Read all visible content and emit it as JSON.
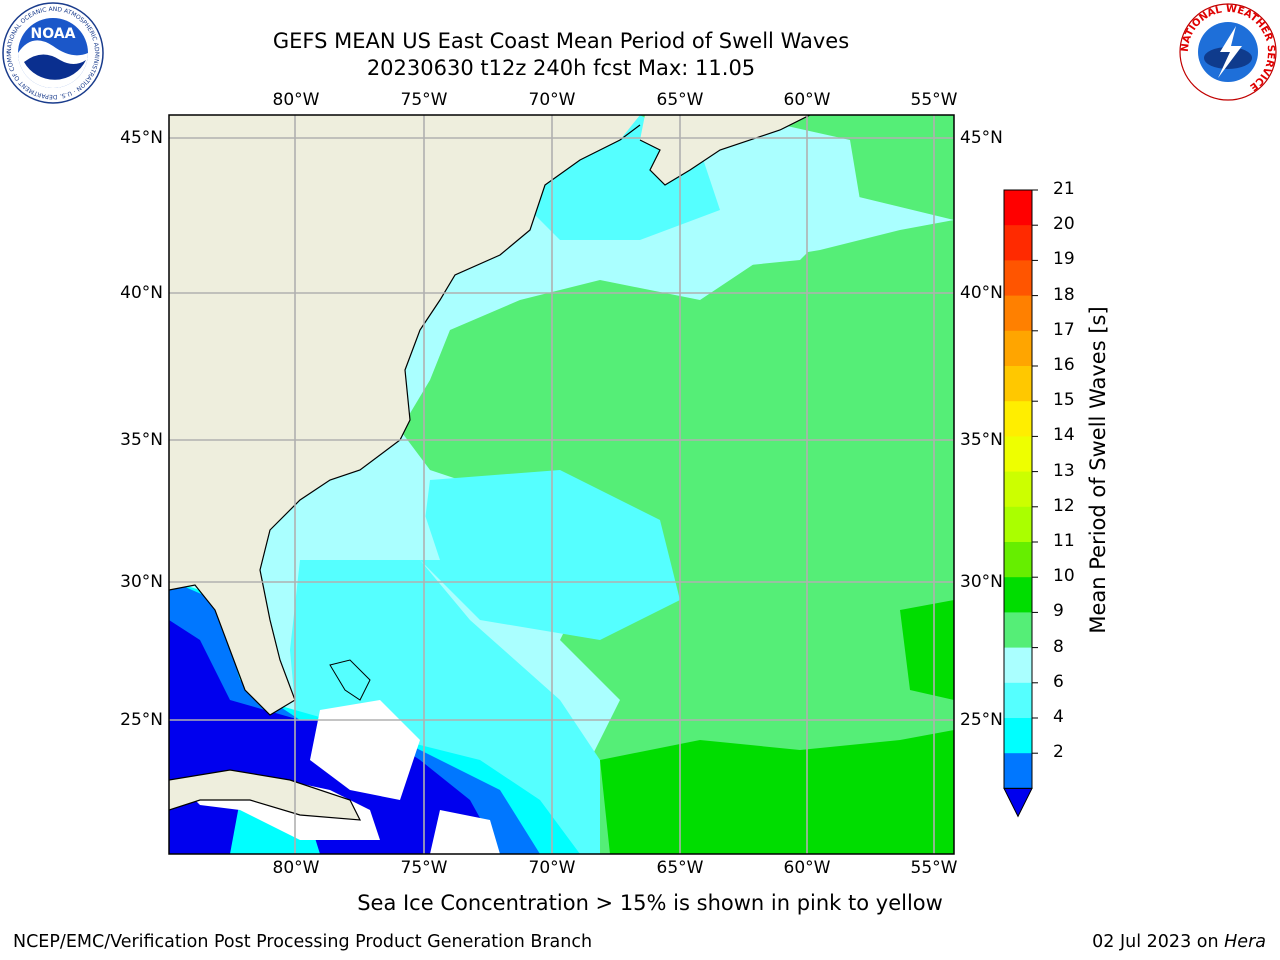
{
  "header": {
    "title_line1": "GEFS MEAN US East Coast Mean Period of Swell Waves",
    "title_line2": "20230630 t12z 240h fcst   Max: 11.05"
  },
  "logos": {
    "noaa_text": "NOAA",
    "noaa_ring": "NATIONAL OCEANIC AND ATMOSPHERIC ADMINISTRATION · U.S. DEPARTMENT OF COMMERCE",
    "nws_ring": "NATIONAL WEATHER SERVICE"
  },
  "axes": {
    "lon_labels": [
      "80°W",
      "75°W",
      "70°W",
      "65°W",
      "60°W",
      "55°W"
    ],
    "lat_labels": [
      "45°N",
      "40°N",
      "35°N",
      "30°N",
      "25°N"
    ]
  },
  "colorbar": {
    "title": "Mean Period of Swell Waves [s]",
    "ticks": [
      "21",
      "20",
      "19",
      "18",
      "17",
      "16",
      "15",
      "14",
      "13",
      "12",
      "11",
      "10",
      "9",
      "8",
      "6",
      "4",
      "2"
    ],
    "colors": [
      "#ff0000",
      "#ff2a00",
      "#ff5500",
      "#ff8000",
      "#ffa500",
      "#ffc800",
      "#ffee00",
      "#eeff00",
      "#ccff00",
      "#aaff00",
      "#66ee00",
      "#00dd00",
      "#55ee77",
      "#aaffff",
      "#55ffff",
      "#00ffff",
      "#0077ff"
    ],
    "arrow_color": "#0000ee",
    "ocean_colors": {
      "deep_blue": "#0000ee",
      "blue": "#0077ff",
      "cyan": "#00ffff",
      "light_cyan": "#55ffff",
      "pale_cyan": "#aaffff",
      "green": "#55ee77",
      "bright_green": "#00dd00",
      "land": "#eeeedd"
    }
  },
  "caption": "Sea Ice Concentration > 15% is shown in pink to yellow",
  "footer": {
    "left": "NCEP/EMC/Verification Post Processing Product Generation Branch",
    "date": "02 Jul 2023 on",
    "machine": "Hera"
  }
}
